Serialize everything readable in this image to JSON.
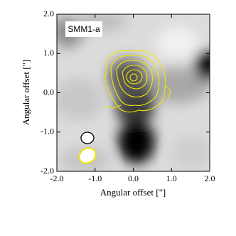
{
  "chart_data": {
    "type": "image",
    "title": "SMM1-a",
    "xlabel": "Angular offset [\"]",
    "ylabel": "Angular offset [\"]",
    "xlim": [
      -2.0,
      2.0
    ],
    "ylim": [
      -2.0,
      2.0
    ],
    "xticks": [
      {
        "value": -2,
        "label": "-2.0"
      },
      {
        "value": -1,
        "label": "-1.0"
      },
      {
        "value": 0,
        "label": "0.0"
      },
      {
        "value": 1,
        "label": "1.0"
      },
      {
        "value": 2,
        "label": "2.0"
      }
    ],
    "yticks": [
      {
        "value": -2,
        "label": "-2.0"
      },
      {
        "value": -1,
        "label": "-1.0"
      },
      {
        "value": 0,
        "label": "0.0"
      },
      {
        "value": 1,
        "label": "1.0"
      },
      {
        "value": 2,
        "label": "2.0"
      }
    ],
    "contour_color": "#f2e600"
  }
}
